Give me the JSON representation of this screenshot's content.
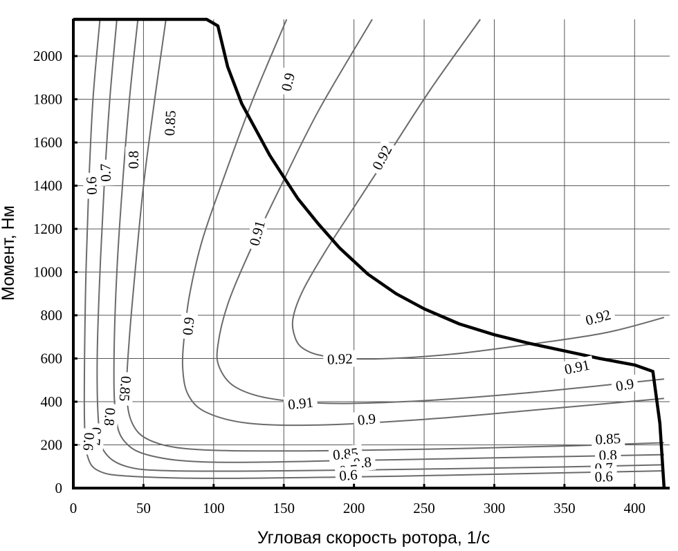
{
  "chart_data": {
    "type": "contour",
    "title": "",
    "xlabel": "Угловая скорость ротора, 1/с",
    "ylabel": "Момент, Нм",
    "xlim": [
      0,
      425
    ],
    "ylim": [
      0,
      2170
    ],
    "x_ticks": [
      0,
      50,
      100,
      150,
      200,
      250,
      300,
      350,
      400
    ],
    "y_ticks": [
      0,
      200,
      400,
      600,
      800,
      1000,
      1200,
      1400,
      1600,
      1800,
      2000
    ],
    "x_tick_labels": [
      "0",
      "50",
      "100",
      "150",
      "200",
      "250",
      "300",
      "350",
      "400"
    ],
    "y_tick_labels": [
      "0",
      "200",
      "400",
      "600",
      "800",
      "1000",
      "1200",
      "1400",
      "1600",
      "1800",
      "2000"
    ],
    "grid": true,
    "torque_speed_limit": [
      [
        0,
        2170
      ],
      [
        95,
        2170
      ],
      [
        103,
        2140
      ],
      [
        110,
        1950
      ],
      [
        120,
        1780
      ],
      [
        130,
        1660
      ],
      [
        140,
        1540
      ],
      [
        150,
        1440
      ],
      [
        160,
        1340
      ],
      [
        175,
        1220
      ],
      [
        190,
        1110
      ],
      [
        210,
        990
      ],
      [
        230,
        900
      ],
      [
        250,
        830
      ],
      [
        275,
        760
      ],
      [
        300,
        710
      ],
      [
        325,
        670
      ],
      [
        350,
        635
      ],
      [
        375,
        600
      ],
      [
        400,
        570
      ],
      [
        413,
        540
      ],
      [
        418,
        300
      ],
      [
        421,
        0
      ]
    ],
    "contours": [
      {
        "level": "0.6",
        "points": [
          [
            19,
            2170
          ],
          [
            14,
            1800
          ],
          [
            11,
            1400
          ],
          [
            9,
            1000
          ],
          [
            8,
            600
          ],
          [
            8,
            300
          ],
          [
            10,
            150
          ],
          [
            18,
            80
          ],
          [
            40,
            55
          ],
          [
            100,
            45
          ],
          [
            200,
            52
          ],
          [
            300,
            64
          ],
          [
            421,
            80
          ]
        ]
      },
      {
        "level": "0.7",
        "points": [
          [
            31,
            2170
          ],
          [
            26,
            1800
          ],
          [
            22,
            1400
          ],
          [
            19,
            1000
          ],
          [
            17,
            600
          ],
          [
            18,
            300
          ],
          [
            22,
            170
          ],
          [
            38,
            100
          ],
          [
            70,
            80
          ],
          [
            150,
            80
          ],
          [
            250,
            88
          ],
          [
            350,
            98
          ],
          [
            421,
            108
          ]
        ]
      },
      {
        "level": "0.8",
        "points": [
          [
            46,
            2170
          ],
          [
            40,
            1800
          ],
          [
            35,
            1400
          ],
          [
            31,
            1000
          ],
          [
            29,
            600
          ],
          [
            30,
            350
          ],
          [
            36,
            220
          ],
          [
            55,
            150
          ],
          [
            100,
            120
          ],
          [
            200,
            128
          ],
          [
            300,
            140
          ],
          [
            421,
            155
          ]
        ]
      },
      {
        "level": "0.85",
        "points": [
          [
            66,
            2170
          ],
          [
            58,
            1800
          ],
          [
            50,
            1400
          ],
          [
            44,
            1000
          ],
          [
            40,
            700
          ],
          [
            38,
            450
          ],
          [
            42,
            300
          ],
          [
            55,
            220
          ],
          [
            85,
            180
          ],
          [
            150,
            172
          ],
          [
            250,
            180
          ],
          [
            350,
            195
          ],
          [
            421,
            210
          ]
        ]
      },
      {
        "level": "0.9",
        "points": [
          [
            152,
            2170
          ],
          [
            128,
            1800
          ],
          [
            108,
            1450
          ],
          [
            92,
            1150
          ],
          [
            83,
            900
          ],
          [
            79,
            700
          ],
          [
            78,
            550
          ],
          [
            82,
            430
          ],
          [
            95,
            350
          ],
          [
            125,
            300
          ],
          [
            175,
            292
          ],
          [
            250,
            318
          ],
          [
            330,
            362
          ],
          [
            421,
            415
          ]
        ]
      },
      {
        "level": "0.91",
        "points": [
          [
            213,
            2170
          ],
          [
            175,
            1750
          ],
          [
            148,
            1400
          ],
          [
            126,
            1100
          ],
          [
            110,
            850
          ],
          [
            103,
            660
          ],
          [
            104,
            560
          ],
          [
            115,
            470
          ],
          [
            140,
            415
          ],
          [
            185,
            392
          ],
          [
            250,
            405
          ],
          [
            330,
            445
          ],
          [
            421,
            505
          ]
        ]
      },
      {
        "level": "0.92",
        "points": [
          [
            290,
            2170
          ],
          [
            255,
            1850
          ],
          [
            225,
            1550
          ],
          [
            200,
            1300
          ],
          [
            180,
            1100
          ],
          [
            164,
            920
          ],
          [
            157,
            800
          ],
          [
            157,
            720
          ],
          [
            163,
            650
          ],
          [
            180,
            610
          ],
          [
            215,
            598
          ],
          [
            270,
            620
          ],
          [
            330,
            670
          ],
          [
            380,
            720
          ],
          [
            421,
            790
          ]
        ]
      }
    ],
    "contour_labels": [
      {
        "text": "0.6",
        "x": 13,
        "y": 1400,
        "rotate": -92
      },
      {
        "text": "0.7",
        "x": 23,
        "y": 1460,
        "rotate": -92
      },
      {
        "text": "0.8",
        "x": 43,
        "y": 1520,
        "rotate": -90
      },
      {
        "text": "0.85",
        "x": 69,
        "y": 1690,
        "rotate": -87
      },
      {
        "text": "0.9",
        "x": 153,
        "y": 1880,
        "rotate": -77
      },
      {
        "text": "0.91",
        "x": 131,
        "y": 1180,
        "rotate": -75
      },
      {
        "text": "0.92",
        "x": 220,
        "y": 1530,
        "rotate": -62
      },
      {
        "text": "0.9",
        "x": 82,
        "y": 750,
        "rotate": -84
      },
      {
        "text": "0.85",
        "x": 37,
        "y": 460,
        "rotate": 95
      },
      {
        "text": "0.8",
        "x": 26,
        "y": 330,
        "rotate": 95
      },
      {
        "text": "0.7",
        "x": 16,
        "y": 240,
        "rotate": 95
      },
      {
        "text": "0.6",
        "x": 11,
        "y": 215,
        "rotate": 95
      },
      {
        "text": "0.92",
        "x": 190,
        "y": 598,
        "rotate": -2
      },
      {
        "text": "0.91",
        "x": 162,
        "y": 392,
        "rotate": -6
      },
      {
        "text": "0.9",
        "x": 209,
        "y": 318,
        "rotate": -6
      },
      {
        "text": "0.85",
        "x": 194,
        "y": 158,
        "rotate": -5
      },
      {
        "text": "0.8",
        "x": 206,
        "y": 118,
        "rotate": -5
      },
      {
        "text": "0.7",
        "x": 196,
        "y": 83,
        "rotate": -4
      },
      {
        "text": "0.6",
        "x": 196,
        "y": 60,
        "rotate": -4
      },
      {
        "text": "0.92",
        "x": 374,
        "y": 790,
        "rotate": -15
      },
      {
        "text": "0.91",
        "x": 359,
        "y": 560,
        "rotate": -12
      },
      {
        "text": "0.9",
        "x": 393,
        "y": 478,
        "rotate": -10
      },
      {
        "text": "0.85",
        "x": 381,
        "y": 228,
        "rotate": -3
      },
      {
        "text": "0.8",
        "x": 381,
        "y": 153,
        "rotate": -2
      },
      {
        "text": "0.7",
        "x": 378,
        "y": 93,
        "rotate": -2
      },
      {
        "text": "0.6",
        "x": 378,
        "y": 53,
        "rotate": -2
      }
    ]
  }
}
